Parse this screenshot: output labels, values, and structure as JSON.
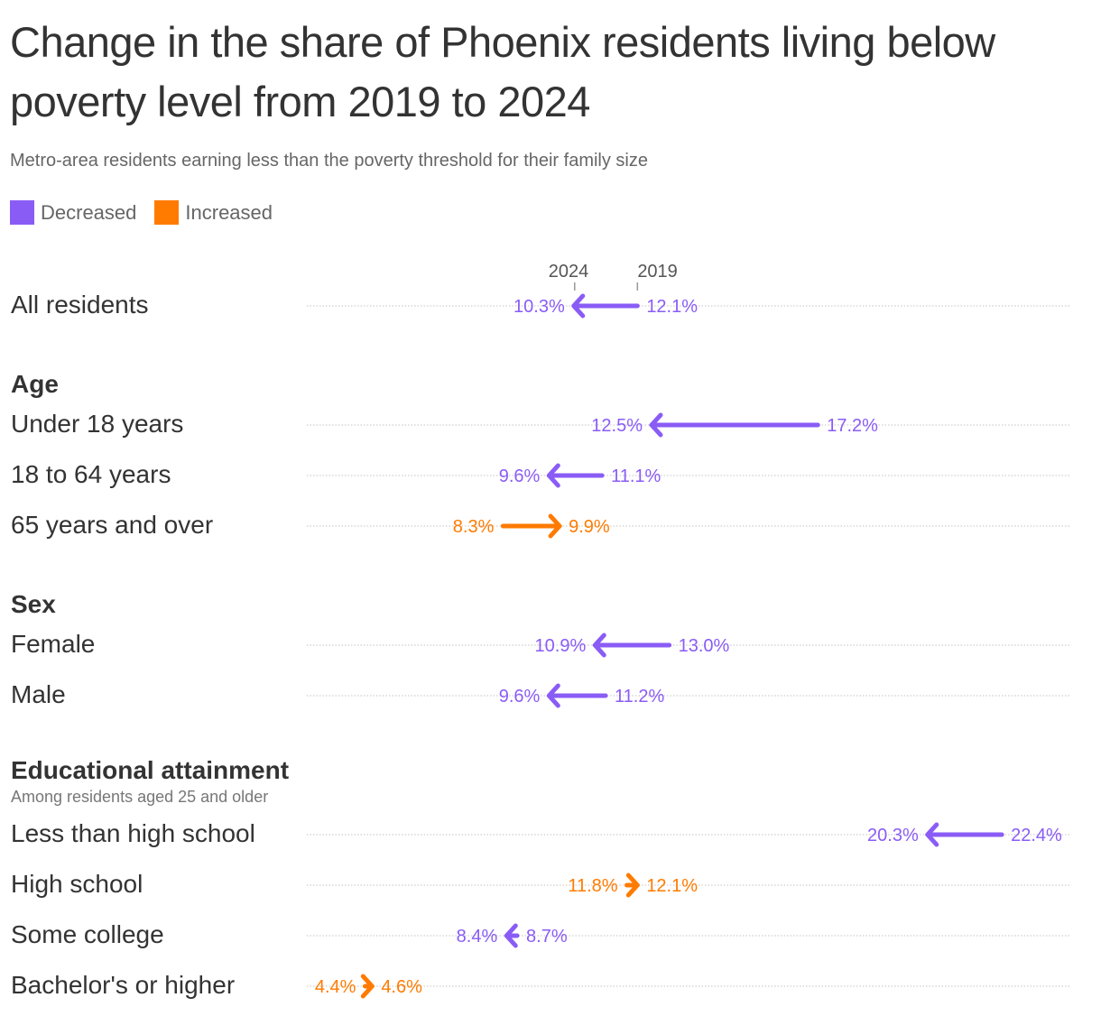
{
  "header": {
    "title": "Change in the share of Phoenix residents living below poverty level from 2019 to 2024",
    "subtitle": "Metro-area residents earning less than the poverty threshold for their family size"
  },
  "legend": [
    {
      "label": "Decreased",
      "color": "#8A5CF6"
    },
    {
      "label": "Increased",
      "color": "#FF7B00"
    }
  ],
  "axis": {
    "label_2024": "2024",
    "label_2019": "2019"
  },
  "groups": [
    {
      "heading": "Age"
    },
    {
      "heading": "Sex"
    },
    {
      "heading": "Educational attainment",
      "note": "Among residents aged 25 and older"
    }
  ],
  "rows": [
    {
      "label": "All residents",
      "y2019": 12.1,
      "y2024": 10.3,
      "v2019": "12.1%",
      "v2024": "10.3%"
    },
    {
      "label": "Under 18 years",
      "y2019": 17.2,
      "y2024": 12.5,
      "v2019": "17.2%",
      "v2024": "12.5%"
    },
    {
      "label": "18 to 64 years",
      "y2019": 11.1,
      "y2024": 9.6,
      "v2019": "11.1%",
      "v2024": "9.6%"
    },
    {
      "label": "65 years and over",
      "y2019": 8.3,
      "y2024": 9.9,
      "v2019": "8.3%",
      "v2024": "9.9%"
    },
    {
      "label": "Female",
      "y2019": 13.0,
      "y2024": 10.9,
      "v2019": "13.0%",
      "v2024": "10.9%"
    },
    {
      "label": "Male",
      "y2019": 11.2,
      "y2024": 9.6,
      "v2019": "11.2%",
      "v2024": "9.6%"
    },
    {
      "label": "Less than high school",
      "y2019": 22.4,
      "y2024": 20.3,
      "v2019": "22.4%",
      "v2024": "20.3%"
    },
    {
      "label": "High school",
      "y2019": 11.8,
      "y2024": 12.1,
      "v2019": "11.8%",
      "v2024": "12.1%"
    },
    {
      "label": "Some college",
      "y2019": 8.7,
      "y2024": 8.4,
      "v2019": "8.7%",
      "v2024": "8.4%"
    },
    {
      "label": "Bachelor's or higher",
      "y2019": 4.4,
      "y2024": 4.6,
      "v2019": "4.4%",
      "v2024": "4.6%"
    }
  ],
  "chart_data": {
    "type": "arrow-dot",
    "title": "Change in the share of Phoenix residents living below poverty level from 2019 to 2024",
    "subtitle": "Metro-area residents earning less than the poverty threshold for their family size",
    "xlabel": "",
    "ylabel": "",
    "legend": [
      "Decreased",
      "Increased"
    ],
    "categories": [
      "All residents",
      "Under 18 years",
      "18 to 64 years",
      "65 years and over",
      "Female",
      "Male",
      "Less than high school",
      "High school",
      "Some college",
      "Bachelor's or higher"
    ],
    "groups": {
      "Age": [
        "Under 18 years",
        "18 to 64 years",
        "65 years and over"
      ],
      "Sex": [
        "Female",
        "Male"
      ],
      "Educational attainment": [
        "Less than high school",
        "High school",
        "Some college",
        "Bachelor's or higher"
      ]
    },
    "series": [
      {
        "name": "2019",
        "values": [
          12.1,
          17.2,
          11.1,
          8.3,
          13.0,
          11.2,
          22.4,
          11.8,
          8.7,
          4.4
        ]
      },
      {
        "name": "2024",
        "values": [
          10.3,
          12.5,
          9.6,
          9.9,
          10.9,
          9.6,
          20.3,
          12.1,
          8.4,
          4.6
        ]
      }
    ],
    "unit": "%",
    "grid": false
  }
}
